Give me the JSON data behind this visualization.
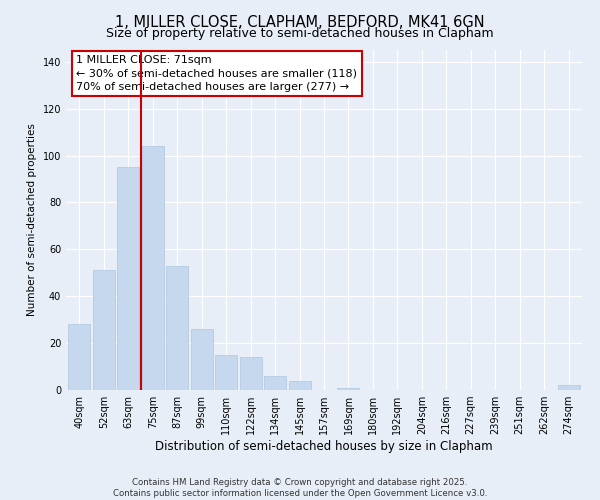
{
  "title": "1, MILLER CLOSE, CLAPHAM, BEDFORD, MK41 6GN",
  "subtitle": "Size of property relative to semi-detached houses in Clapham",
  "xlabel": "Distribution of semi-detached houses by size in Clapham",
  "ylabel": "Number of semi-detached properties",
  "categories": [
    "40sqm",
    "52sqm",
    "63sqm",
    "75sqm",
    "87sqm",
    "99sqm",
    "110sqm",
    "122sqm",
    "134sqm",
    "145sqm",
    "157sqm",
    "169sqm",
    "180sqm",
    "192sqm",
    "204sqm",
    "216sqm",
    "227sqm",
    "239sqm",
    "251sqm",
    "262sqm",
    "274sqm"
  ],
  "values": [
    28,
    51,
    95,
    104,
    53,
    26,
    15,
    14,
    6,
    4,
    0,
    1,
    0,
    0,
    0,
    0,
    0,
    0,
    0,
    0,
    2
  ],
  "bar_color": "#c5d8ed",
  "bar_edge_color": "#aec6de",
  "vline_x_index": 2.5,
  "vline_color": "#cc0000",
  "annotation_title": "1 MILLER CLOSE: 71sqm",
  "annotation_line1": "← 30% of semi-detached houses are smaller (118)",
  "annotation_line2": "70% of semi-detached houses are larger (277) →",
  "annotation_box_color": "#ffffff",
  "annotation_box_edge": "#cc0000",
  "ylim": [
    0,
    145
  ],
  "yticks": [
    0,
    20,
    40,
    60,
    80,
    100,
    120,
    140
  ],
  "background_color": "#e8eef8",
  "grid_color": "#ffffff",
  "footer_line1": "Contains HM Land Registry data © Crown copyright and database right 2025.",
  "footer_line2": "Contains public sector information licensed under the Open Government Licence v3.0.",
  "title_fontsize": 10.5,
  "subtitle_fontsize": 9,
  "xlabel_fontsize": 8.5,
  "ylabel_fontsize": 7.5,
  "tick_fontsize": 7,
  "ann_fontsize": 8,
  "footer_fontsize": 6.2
}
